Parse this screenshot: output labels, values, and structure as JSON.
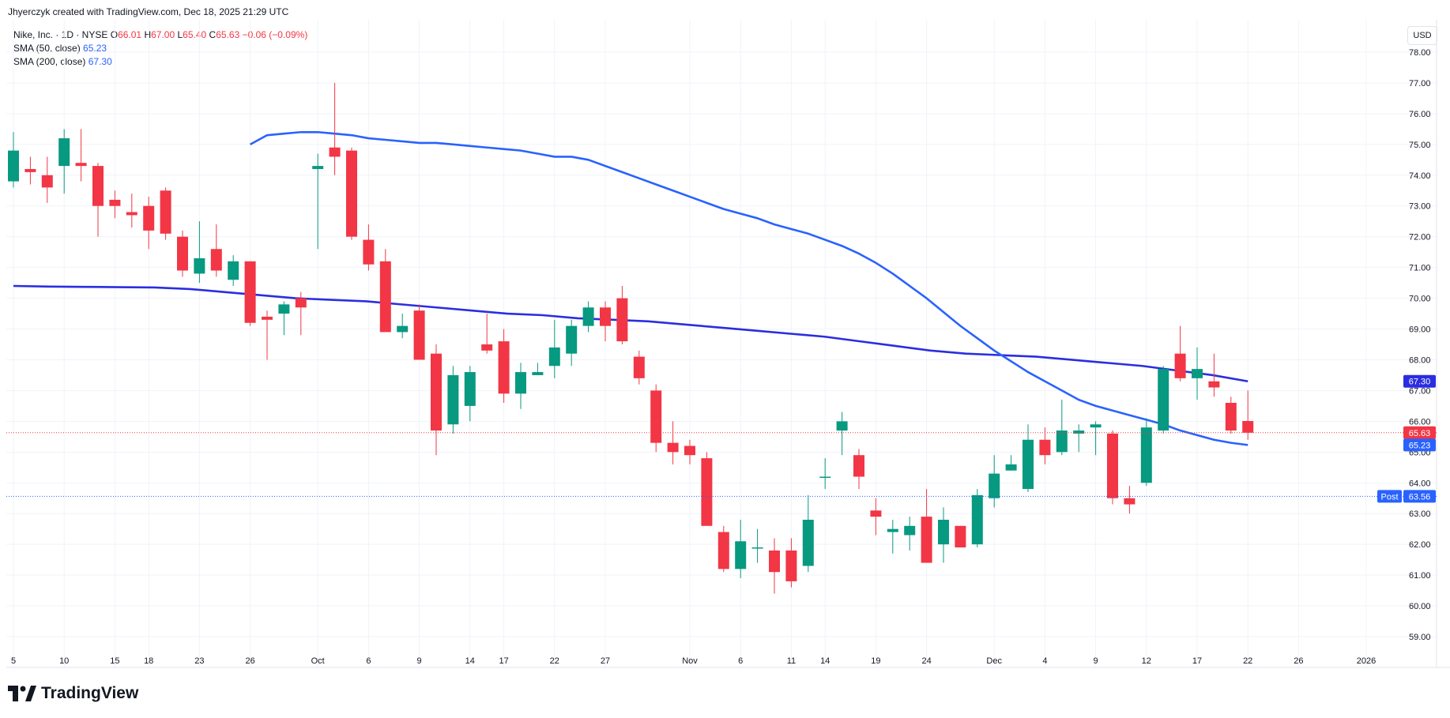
{
  "header": {
    "created_by": "Jhyerczyk created with TradingView.com, Dec 18, 2025 21:29 UTC"
  },
  "legend": {
    "symbol": "Nike, Inc. · 1D · NYSE",
    "open_label": "O",
    "open": "66.01",
    "high_label": "H",
    "high": "67.00",
    "low_label": "L",
    "low": "65.40",
    "close_label": "C",
    "close": "65.63",
    "change": "−0.06 (−0.09%)",
    "sma50_label": "SMA (50, close)",
    "sma50_value": "65.23",
    "sma200_label": "SMA (200, close)",
    "sma200_value": "67.30"
  },
  "currency": "USD",
  "branding": {
    "logo_text": "TradingView"
  },
  "colors": {
    "up": "#089981",
    "down": "#f23645",
    "sma50": "#2962ff",
    "sma200": "#2a2ee0",
    "post": "#2962ff",
    "grid": "#f0f3fa"
  },
  "chart_data": {
    "type": "candlestick",
    "ylim": [
      58.6,
      78.5
    ],
    "yticks": [
      "59.00",
      "60.00",
      "61.00",
      "62.00",
      "63.00",
      "64.00",
      "65.00",
      "66.00",
      "67.00",
      "68.00",
      "69.00",
      "70.00",
      "71.00",
      "72.00",
      "73.00",
      "74.00",
      "75.00",
      "76.00",
      "77.00",
      "78.00"
    ],
    "xticks": [
      "5",
      "10",
      "15",
      "18",
      "23",
      "26",
      "Oct",
      "6",
      "9",
      "14",
      "17",
      "22",
      "27",
      "Nov",
      "6",
      "11",
      "14",
      "19",
      "24",
      "Dec",
      "4",
      "9",
      "12",
      "17",
      "22",
      "26",
      "2026"
    ],
    "candles": [
      {
        "o": 73.8,
        "h": 75.4,
        "l": 73.6,
        "c": 74.8
      },
      {
        "o": 74.2,
        "h": 74.6,
        "l": 73.7,
        "c": 74.1
      },
      {
        "o": 74.0,
        "h": 74.6,
        "l": 73.1,
        "c": 73.6
      },
      {
        "o": 74.3,
        "h": 75.5,
        "l": 73.4,
        "c": 75.2
      },
      {
        "o": 74.4,
        "h": 75.5,
        "l": 73.8,
        "c": 74.3
      },
      {
        "o": 74.3,
        "h": 74.4,
        "l": 72.0,
        "c": 73.0
      },
      {
        "o": 73.2,
        "h": 73.5,
        "l": 72.6,
        "c": 73.0
      },
      {
        "o": 72.8,
        "h": 73.4,
        "l": 72.3,
        "c": 72.7
      },
      {
        "o": 73.0,
        "h": 73.3,
        "l": 71.6,
        "c": 72.2
      },
      {
        "o": 73.5,
        "h": 73.6,
        "l": 71.9,
        "c": 72.1
      },
      {
        "o": 72.0,
        "h": 72.2,
        "l": 70.7,
        "c": 70.9
      },
      {
        "o": 70.8,
        "h": 72.5,
        "l": 70.5,
        "c": 71.3
      },
      {
        "o": 71.6,
        "h": 72.4,
        "l": 70.7,
        "c": 70.9
      },
      {
        "o": 70.6,
        "h": 71.4,
        "l": 70.4,
        "c": 71.2
      },
      {
        "o": 71.2,
        "h": 71.2,
        "l": 69.1,
        "c": 69.2
      },
      {
        "o": 69.4,
        "h": 69.6,
        "l": 68.0,
        "c": 69.3
      },
      {
        "o": 69.5,
        "h": 69.9,
        "l": 68.8,
        "c": 69.8
      },
      {
        "o": 70.0,
        "h": 70.2,
        "l": 68.8,
        "c": 69.7
      },
      {
        "o": 74.2,
        "h": 74.7,
        "l": 71.6,
        "c": 74.3
      },
      {
        "o": 74.9,
        "h": 77.0,
        "l": 74.0,
        "c": 74.6
      },
      {
        "o": 74.8,
        "h": 74.9,
        "l": 71.9,
        "c": 72.0
      },
      {
        "o": 71.9,
        "h": 72.4,
        "l": 70.9,
        "c": 71.1
      },
      {
        "o": 71.2,
        "h": 71.6,
        "l": 68.9,
        "c": 68.9
      },
      {
        "o": 68.9,
        "h": 69.5,
        "l": 68.7,
        "c": 69.1
      },
      {
        "o": 69.6,
        "h": 69.8,
        "l": 68.0,
        "c": 68.0
      },
      {
        "o": 68.2,
        "h": 68.5,
        "l": 64.9,
        "c": 65.7
      },
      {
        "o": 65.9,
        "h": 67.8,
        "l": 65.6,
        "c": 67.5
      },
      {
        "o": 66.5,
        "h": 67.8,
        "l": 66.0,
        "c": 67.6
      },
      {
        "o": 68.5,
        "h": 69.5,
        "l": 68.2,
        "c": 68.3
      },
      {
        "o": 68.6,
        "h": 69.0,
        "l": 66.6,
        "c": 66.9
      },
      {
        "o": 66.9,
        "h": 67.9,
        "l": 66.4,
        "c": 67.6
      },
      {
        "o": 67.5,
        "h": 67.9,
        "l": 67.5,
        "c": 67.6
      },
      {
        "o": 67.8,
        "h": 69.3,
        "l": 67.4,
        "c": 68.4
      },
      {
        "o": 68.2,
        "h": 69.3,
        "l": 67.8,
        "c": 69.1
      },
      {
        "o": 69.1,
        "h": 69.9,
        "l": 68.9,
        "c": 69.7
      },
      {
        "o": 69.7,
        "h": 69.9,
        "l": 68.6,
        "c": 69.1
      },
      {
        "o": 70.0,
        "h": 70.4,
        "l": 68.5,
        "c": 68.6
      },
      {
        "o": 68.1,
        "h": 68.3,
        "l": 67.2,
        "c": 67.4
      },
      {
        "o": 67.0,
        "h": 67.2,
        "l": 65.0,
        "c": 65.3
      },
      {
        "o": 65.3,
        "h": 66.0,
        "l": 64.6,
        "c": 65.0
      },
      {
        "o": 65.2,
        "h": 65.4,
        "l": 64.6,
        "c": 64.9
      },
      {
        "o": 64.8,
        "h": 65.0,
        "l": 62.6,
        "c": 62.6
      },
      {
        "o": 62.4,
        "h": 62.6,
        "l": 61.1,
        "c": 61.2
      },
      {
        "o": 61.2,
        "h": 62.8,
        "l": 60.9,
        "c": 62.1
      },
      {
        "o": 61.9,
        "h": 62.5,
        "l": 61.4,
        "c": 61.9
      },
      {
        "o": 61.8,
        "h": 62.2,
        "l": 60.4,
        "c": 61.1
      },
      {
        "o": 61.8,
        "h": 62.2,
        "l": 60.6,
        "c": 60.8
      },
      {
        "o": 61.3,
        "h": 63.6,
        "l": 61.1,
        "c": 62.8
      },
      {
        "o": 64.2,
        "h": 64.8,
        "l": 63.8,
        "c": 64.2
      },
      {
        "o": 65.7,
        "h": 66.3,
        "l": 64.9,
        "c": 66.0
      },
      {
        "o": 64.9,
        "h": 65.1,
        "l": 63.8,
        "c": 64.2
      },
      {
        "o": 63.1,
        "h": 63.5,
        "l": 62.3,
        "c": 62.9
      },
      {
        "o": 62.4,
        "h": 62.8,
        "l": 61.7,
        "c": 62.5
      },
      {
        "o": 62.3,
        "h": 62.9,
        "l": 61.8,
        "c": 62.6
      },
      {
        "o": 62.9,
        "h": 63.8,
        "l": 61.4,
        "c": 61.4
      },
      {
        "o": 62.0,
        "h": 63.2,
        "l": 61.4,
        "c": 62.8
      },
      {
        "o": 62.6,
        "h": 62.6,
        "l": 61.9,
        "c": 61.9
      },
      {
        "o": 62.0,
        "h": 63.8,
        "l": 61.9,
        "c": 63.6
      },
      {
        "o": 63.5,
        "h": 64.9,
        "l": 63.2,
        "c": 64.3
      },
      {
        "o": 64.4,
        "h": 64.9,
        "l": 64.4,
        "c": 64.6
      },
      {
        "o": 63.8,
        "h": 65.9,
        "l": 63.7,
        "c": 65.4
      },
      {
        "o": 65.4,
        "h": 65.8,
        "l": 64.6,
        "c": 64.9
      },
      {
        "o": 65.0,
        "h": 66.7,
        "l": 64.9,
        "c": 65.7
      },
      {
        "o": 65.6,
        "h": 65.9,
        "l": 65.0,
        "c": 65.7
      },
      {
        "o": 65.8,
        "h": 66.0,
        "l": 64.9,
        "c": 65.9
      },
      {
        "o": 65.6,
        "h": 65.7,
        "l": 63.3,
        "c": 63.5
      },
      {
        "o": 63.5,
        "h": 63.9,
        "l": 63.0,
        "c": 63.3
      },
      {
        "o": 64.0,
        "h": 66.1,
        "l": 63.9,
        "c": 65.8
      },
      {
        "o": 65.7,
        "h": 67.8,
        "l": 65.6,
        "c": 67.7
      },
      {
        "o": 68.2,
        "h": 69.1,
        "l": 67.3,
        "c": 67.4
      },
      {
        "o": 67.4,
        "h": 68.4,
        "l": 66.7,
        "c": 67.7
      },
      {
        "o": 67.3,
        "h": 68.2,
        "l": 66.8,
        "c": 67.1
      },
      {
        "o": 66.6,
        "h": 66.8,
        "l": 65.6,
        "c": 65.7
      },
      {
        "o": 66.01,
        "h": 67.0,
        "l": 65.4,
        "c": 65.63
      }
    ],
    "series": [
      {
        "name": "SMA (50, close)",
        "values": [
          75.0,
          75.3,
          75.35,
          75.4,
          75.4,
          75.35,
          75.3,
          75.2,
          75.15,
          75.1,
          75.05,
          75.05,
          75.0,
          74.95,
          74.9,
          74.85,
          74.8,
          74.7,
          74.6,
          74.6,
          74.5,
          74.3,
          74.1,
          73.9,
          73.7,
          73.5,
          73.3,
          73.1,
          72.9,
          72.75,
          72.6,
          72.4,
          72.25,
          72.1,
          71.9,
          71.7,
          71.45,
          71.15,
          70.8,
          70.4,
          70.0,
          69.55,
          69.1,
          68.7,
          68.3,
          67.95,
          67.6,
          67.3,
          67.0,
          66.7,
          66.5,
          66.35,
          66.2,
          66.05,
          65.9,
          65.7,
          65.55,
          65.4,
          65.3,
          65.23
        ]
      },
      {
        "name": "SMA (200, close)",
        "values": [
          70.4,
          70.38,
          70.37,
          70.36,
          70.35,
          70.3,
          70.2,
          70.1,
          70.0,
          69.95,
          69.9,
          69.8,
          69.7,
          69.6,
          69.5,
          69.45,
          69.35,
          69.3,
          69.25,
          69.15,
          69.05,
          68.95,
          68.85,
          68.75,
          68.6,
          68.45,
          68.3,
          68.2,
          68.15,
          68.1,
          68.0,
          67.9,
          67.8,
          67.65,
          67.5,
          67.3
        ]
      }
    ],
    "price_tags": {
      "sma200": "67.30",
      "close": "65.63",
      "sma50": "65.23",
      "post_label": "Post",
      "post": "63.56"
    },
    "grid": true
  }
}
